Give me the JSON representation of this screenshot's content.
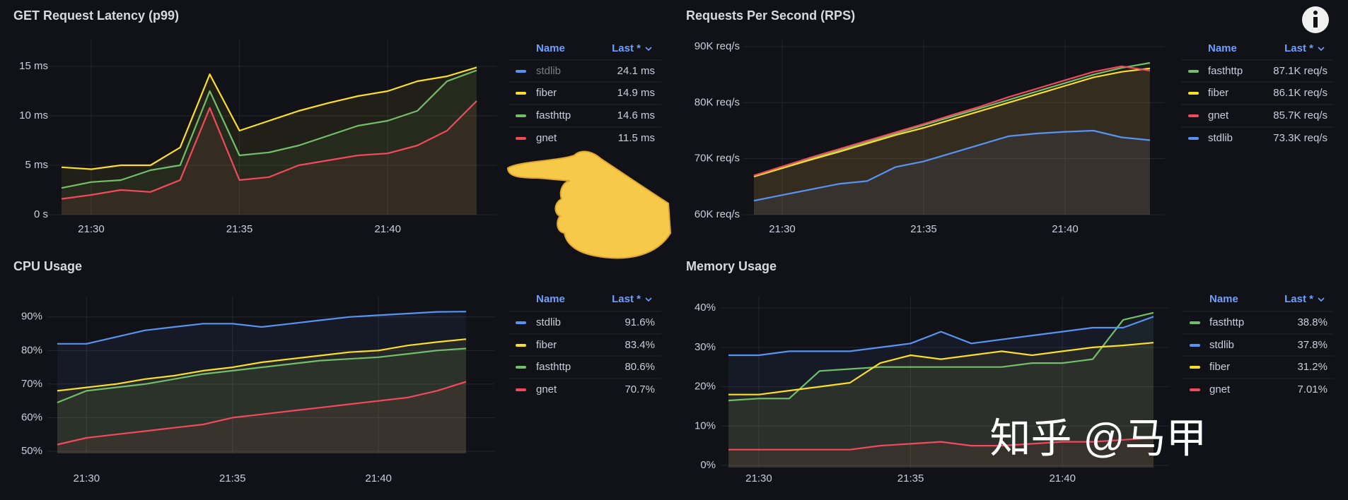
{
  "chart_data": [
    {
      "type": "line",
      "title": "GET Request Latency (p99)",
      "x": [
        "21:29",
        "21:30",
        "21:31",
        "21:32",
        "21:33",
        "21:34",
        "21:35",
        "21:36",
        "21:37",
        "21:38",
        "21:39",
        "21:40",
        "21:41",
        "21:42",
        "21:43"
      ],
      "xlim": [
        "21:29",
        "21:43"
      ],
      "xticks": [
        "21:30",
        "21:35",
        "21:40"
      ],
      "ylim": [
        0,
        17
      ],
      "yticks": [
        {
          "value": 0,
          "label": "0 s"
        },
        {
          "value": 5,
          "label": "5 ms"
        },
        {
          "value": 10,
          "label": "10 ms"
        },
        {
          "value": 15,
          "label": "15 ms"
        }
      ],
      "legend": {
        "columns": [
          "Name",
          "Last *"
        ]
      },
      "series": [
        {
          "name": "stdlib",
          "color": "#5794f2",
          "hidden": true,
          "last": "24.1 ms"
        },
        {
          "name": "fiber",
          "color": "#fade2a",
          "last": "14.9 ms",
          "values": [
            4.8,
            4.6,
            5.0,
            5.0,
            6.8,
            14.2,
            8.5,
            9.5,
            10.5,
            11.3,
            12.0,
            12.5,
            13.5,
            14.0,
            14.9
          ]
        },
        {
          "name": "fasthttp",
          "color": "#73bf69",
          "last": "14.6 ms",
          "values": [
            2.7,
            3.3,
            3.5,
            4.5,
            5.0,
            12.5,
            6.0,
            6.3,
            7.0,
            8.0,
            9.0,
            9.5,
            10.5,
            13.5,
            14.6
          ]
        },
        {
          "name": "gnet",
          "color": "#f2495c",
          "last": "11.5 ms",
          "values": [
            1.6,
            2.0,
            2.5,
            2.3,
            3.5,
            10.8,
            3.5,
            3.8,
            5.0,
            5.5,
            6.0,
            6.2,
            7.0,
            8.5,
            11.5
          ]
        }
      ]
    },
    {
      "type": "line",
      "title": "Requests Per Second (RPS)",
      "x": [
        "21:29",
        "21:30",
        "21:31",
        "21:32",
        "21:33",
        "21:34",
        "21:35",
        "21:36",
        "21:37",
        "21:38",
        "21:39",
        "21:40",
        "21:41",
        "21:42",
        "21:43"
      ],
      "xlim": [
        "21:29",
        "21:43"
      ],
      "xticks": [
        "21:30",
        "21:35",
        "21:40"
      ],
      "ylim": [
        60000,
        90000
      ],
      "yticks": [
        {
          "value": 60000,
          "label": "60K req/s"
        },
        {
          "value": 70000,
          "label": "70K req/s"
        },
        {
          "value": 80000,
          "label": "80K req/s"
        },
        {
          "value": 90000,
          "label": "90K req/s"
        }
      ],
      "legend": {
        "columns": [
          "Name",
          "Last *"
        ]
      },
      "series": [
        {
          "name": "fasthttp",
          "color": "#73bf69",
          "last": "87.1K req/s",
          "values": [
            67000,
            68500,
            70000,
            71500,
            73000,
            74500,
            76000,
            77500,
            79000,
            80500,
            82000,
            83500,
            85000,
            86200,
            87100
          ]
        },
        {
          "name": "fiber",
          "color": "#fade2a",
          "last": "86.1K req/s",
          "values": [
            66800,
            68300,
            69800,
            71200,
            72700,
            74200,
            75500,
            77000,
            78500,
            80000,
            81500,
            83000,
            84500,
            85500,
            86100
          ]
        },
        {
          "name": "gnet",
          "color": "#f2495c",
          "last": "85.7K req/s",
          "values": [
            67000,
            68600,
            70200,
            71700,
            73200,
            74700,
            76200,
            77800,
            79300,
            81000,
            82500,
            84000,
            85500,
            86500,
            85700
          ]
        },
        {
          "name": "stdlib",
          "color": "#5794f2",
          "last": "73.3K req/s",
          "values": [
            62500,
            63500,
            64500,
            65500,
            66000,
            68500,
            69500,
            71000,
            72500,
            74000,
            74500,
            74800,
            75000,
            73800,
            73300
          ]
        }
      ]
    },
    {
      "type": "line",
      "title": "CPU Usage",
      "x": [
        "21:29",
        "21:30",
        "21:31",
        "21:32",
        "21:33",
        "21:34",
        "21:35",
        "21:36",
        "21:37",
        "21:38",
        "21:39",
        "21:40",
        "21:41",
        "21:42",
        "21:43"
      ],
      "xlim": [
        "21:29",
        "21:43"
      ],
      "xticks": [
        "21:30",
        "21:35",
        "21:40"
      ],
      "ylim": [
        50,
        95
      ],
      "yticks": [
        {
          "value": 50,
          "label": "50%"
        },
        {
          "value": 60,
          "label": "60%"
        },
        {
          "value": 70,
          "label": "70%"
        },
        {
          "value": 80,
          "label": "80%"
        },
        {
          "value": 90,
          "label": "90%"
        }
      ],
      "legend": {
        "columns": [
          "Name",
          "Last *"
        ]
      },
      "series": [
        {
          "name": "stdlib",
          "color": "#5794f2",
          "last": "91.6%",
          "values": [
            82,
            82,
            84,
            86,
            87,
            88,
            88,
            87,
            88,
            89,
            90,
            90.5,
            91,
            91.5,
            91.6
          ]
        },
        {
          "name": "fiber",
          "color": "#fade2a",
          "last": "83.4%",
          "values": [
            68,
            69,
            70,
            71.5,
            72.5,
            74,
            75,
            76.5,
            77.5,
            78.5,
            79.5,
            80,
            81.5,
            82.5,
            83.4
          ]
        },
        {
          "name": "fasthttp",
          "color": "#73bf69",
          "last": "80.6%",
          "values": [
            64.5,
            68,
            69,
            70,
            71.5,
            73,
            74,
            75,
            76,
            77,
            77.5,
            78,
            79,
            80,
            80.6
          ]
        },
        {
          "name": "gnet",
          "color": "#f2495c",
          "last": "70.7%",
          "values": [
            52,
            54,
            55,
            56,
            57,
            58,
            60,
            61,
            62,
            63,
            64,
            65,
            66,
            68,
            70.7
          ]
        }
      ]
    },
    {
      "type": "line",
      "title": "Memory Usage",
      "x": [
        "21:29",
        "21:30",
        "21:31",
        "21:32",
        "21:33",
        "21:34",
        "21:35",
        "21:36",
        "21:37",
        "21:38",
        "21:39",
        "21:40",
        "21:41",
        "21:42",
        "21:43"
      ],
      "xlim": [
        "21:29",
        "21:43"
      ],
      "xticks": [
        "21:30",
        "21:35",
        "21:40"
      ],
      "ylim": [
        0,
        42
      ],
      "yticks": [
        {
          "value": 0,
          "label": "0%"
        },
        {
          "value": 10,
          "label": "10%"
        },
        {
          "value": 20,
          "label": "20%"
        },
        {
          "value": 30,
          "label": "30%"
        },
        {
          "value": 40,
          "label": "40%"
        }
      ],
      "legend": {
        "columns": [
          "Name",
          "Last *"
        ]
      },
      "series": [
        {
          "name": "fasthttp",
          "color": "#73bf69",
          "last": "38.8%",
          "values": [
            16.5,
            17,
            17,
            24,
            24.5,
            25,
            25,
            25,
            25,
            25,
            26,
            26,
            27,
            37,
            38.8
          ]
        },
        {
          "name": "stdlib",
          "color": "#5794f2",
          "last": "37.8%",
          "values": [
            28,
            28,
            29,
            29,
            29,
            30,
            31,
            34,
            31,
            32,
            33,
            34,
            35,
            35,
            37.8
          ]
        },
        {
          "name": "fiber",
          "color": "#fade2a",
          "last": "31.2%",
          "values": [
            18,
            18,
            19,
            20,
            21,
            26,
            28,
            27,
            28,
            29,
            28,
            29,
            30,
            30.5,
            31.2
          ]
        },
        {
          "name": "gnet",
          "color": "#f2495c",
          "last": "7.01%",
          "values": [
            4,
            4,
            4,
            4,
            4,
            5,
            5.5,
            6,
            5,
            5,
            5.5,
            6,
            6,
            6.5,
            7.01
          ]
        }
      ]
    }
  ],
  "watermark": "知乎 @马甲"
}
